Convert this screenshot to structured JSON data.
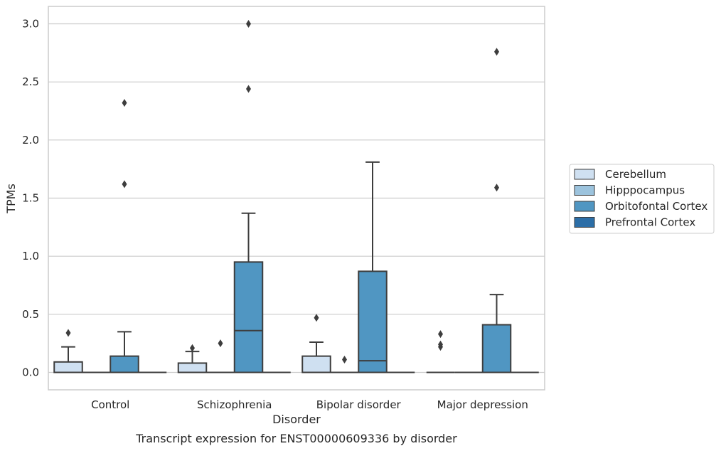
{
  "caption": "Transcript expression for ENST00000609336 by disorder",
  "chart_data": {
    "type": "box",
    "xlabel": "Disorder",
    "ylabel": "TPMs",
    "ylim": [
      -0.15,
      3.15
    ],
    "yticks": [
      "0.0",
      "0.5",
      "1.0",
      "1.5",
      "2.0",
      "2.5",
      "3.0"
    ],
    "categories": [
      "Control",
      "Schizophrenia",
      "Bipolar disorder",
      "Major depression"
    ],
    "grid": "horizontal",
    "legend_position": "right",
    "series": [
      {
        "name": "Cerebellum",
        "color": "#cfe0f1",
        "boxes": [
          {
            "q1": 0.0,
            "median": 0.0,
            "q3": 0.09,
            "whisker_low": 0.0,
            "whisker_high": 0.22,
            "outliers": [
              0.34
            ]
          },
          {
            "q1": 0.0,
            "median": 0.0,
            "q3": 0.08,
            "whisker_low": 0.0,
            "whisker_high": 0.18,
            "outliers": [
              0.21
            ]
          },
          {
            "q1": 0.0,
            "median": 0.0,
            "q3": 0.14,
            "whisker_low": 0.0,
            "whisker_high": 0.26,
            "outliers": [
              0.47
            ]
          },
          {
            "q1": 0.0,
            "median": 0.0,
            "q3": 0.0,
            "whisker_low": 0.0,
            "whisker_high": 0.0,
            "outliers": [
              0.22,
              0.24,
              0.33
            ]
          }
        ]
      },
      {
        "name": "Hipppocampus",
        "color": "#9cc3dd",
        "boxes": [
          {
            "q1": 0.0,
            "median": 0.0,
            "q3": 0.0,
            "whisker_low": 0.0,
            "whisker_high": 0.0,
            "outliers": []
          },
          {
            "q1": 0.0,
            "median": 0.0,
            "q3": 0.0,
            "whisker_low": 0.0,
            "whisker_high": 0.0,
            "outliers": [
              0.25
            ]
          },
          {
            "q1": 0.0,
            "median": 0.0,
            "q3": 0.0,
            "whisker_low": 0.0,
            "whisker_high": 0.0,
            "outliers": [
              0.11
            ]
          },
          {
            "q1": 0.0,
            "median": 0.0,
            "q3": 0.0,
            "whisker_low": 0.0,
            "whisker_high": 0.0,
            "outliers": []
          }
        ]
      },
      {
        "name": "Orbitofontal Cortex",
        "color": "#5096c2",
        "boxes": [
          {
            "q1": 0.0,
            "median": 0.0,
            "q3": 0.14,
            "whisker_low": 0.0,
            "whisker_high": 0.35,
            "outliers": [
              1.62,
              2.32
            ]
          },
          {
            "q1": 0.0,
            "median": 0.36,
            "q3": 0.95,
            "whisker_low": 0.0,
            "whisker_high": 1.37,
            "outliers": [
              2.44,
              3.0
            ]
          },
          {
            "q1": 0.0,
            "median": 0.1,
            "q3": 0.87,
            "whisker_low": 0.0,
            "whisker_high": 1.81,
            "outliers": []
          },
          {
            "q1": 0.0,
            "median": 0.0,
            "q3": 0.41,
            "whisker_low": 0.0,
            "whisker_high": 0.67,
            "outliers": [
              1.59,
              2.76
            ]
          }
        ]
      },
      {
        "name": "Prefrontal Cortex",
        "color": "#2c6ea7",
        "boxes": [
          {
            "q1": 0.0,
            "median": 0.0,
            "q3": 0.0,
            "whisker_low": 0.0,
            "whisker_high": 0.0,
            "outliers": []
          },
          {
            "q1": 0.0,
            "median": 0.0,
            "q3": 0.0,
            "whisker_low": 0.0,
            "whisker_high": 0.0,
            "outliers": []
          },
          {
            "q1": 0.0,
            "median": 0.0,
            "q3": 0.0,
            "whisker_low": 0.0,
            "whisker_high": 0.0,
            "outliers": []
          },
          {
            "q1": 0.0,
            "median": 0.0,
            "q3": 0.0,
            "whisker_low": 0.0,
            "whisker_high": 0.0,
            "outliers": []
          }
        ]
      }
    ]
  }
}
